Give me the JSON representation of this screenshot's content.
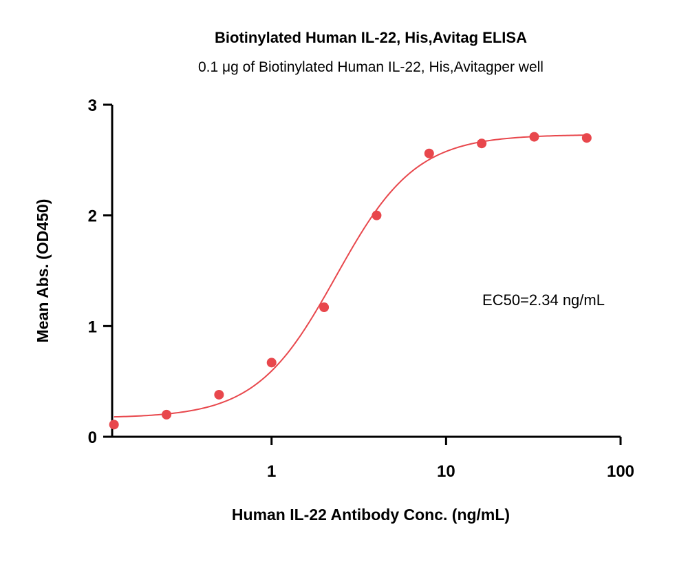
{
  "chart_data": {
    "type": "scatter",
    "title": "Biotinylated Human IL-22, His,Avitag ELISA",
    "subtitle": "0.1 μg of Biotinylated Human IL-22, His,Avitagper well",
    "xlabel": "Human IL-22 Antibody Conc. (ng/mL)",
    "ylabel": "Mean Abs. (OD450)",
    "x_scale": "log",
    "xlim": [
      0.122,
      100
    ],
    "ylim": [
      0,
      3
    ],
    "x_ticks": [
      {
        "value": 1,
        "label": "1"
      },
      {
        "value": 10,
        "label": "10"
      },
      {
        "value": 100,
        "label": "100"
      }
    ],
    "y_ticks": [
      {
        "value": 0,
        "label": "0"
      },
      {
        "value": 1,
        "label": "1"
      },
      {
        "value": 2,
        "label": "2"
      },
      {
        "value": 3,
        "label": "3"
      }
    ],
    "series": [
      {
        "color": "#e8474c",
        "x": [
          0.125,
          0.25,
          0.5,
          1,
          2,
          4,
          8,
          16,
          32,
          64
        ],
        "y": [
          0.11,
          0.2,
          0.38,
          0.67,
          1.17,
          2.0,
          2.56,
          2.65,
          2.71,
          2.7
        ],
        "fit": {
          "model": "4PL",
          "bottom": 0.17,
          "top": 2.73,
          "ec50": 2.34,
          "hill": 1.9
        }
      }
    ],
    "annotations": [
      {
        "text": "EC50=2.34 ng/mL"
      }
    ],
    "grid": false,
    "legend": "none"
  }
}
